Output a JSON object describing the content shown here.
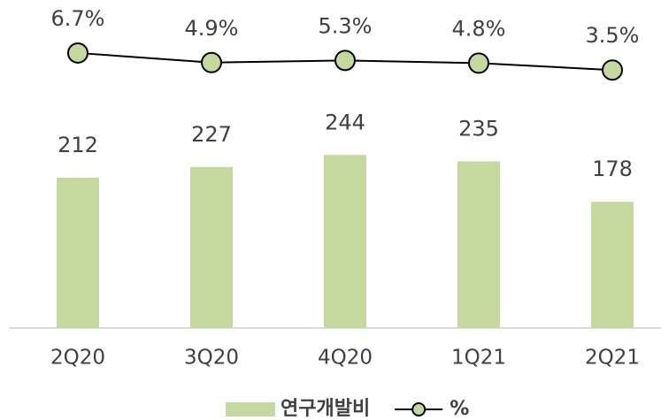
{
  "chart_data": {
    "type": "bar",
    "categories": [
      "2Q20",
      "3Q20",
      "4Q20",
      "1Q21",
      "2Q21"
    ],
    "series": [
      {
        "name": "연구개발비",
        "type": "bar",
        "color": "#c5d89d",
        "values": [
          212,
          227,
          244,
          235,
          178
        ]
      },
      {
        "name": "%",
        "type": "line",
        "axis": "y2",
        "color": "#c5d89d",
        "line_color": "#000000",
        "values": [
          6.7,
          4.9,
          5.3,
          4.8,
          3.5
        ],
        "value_labels": [
          "6.7%",
          "4.9%",
          "5.3%",
          "4.8%",
          "3.5%"
        ]
      }
    ],
    "ylim": [
      0,
      450
    ],
    "y2lim": [
      -45,
      15
    ],
    "legend": "bottom"
  }
}
